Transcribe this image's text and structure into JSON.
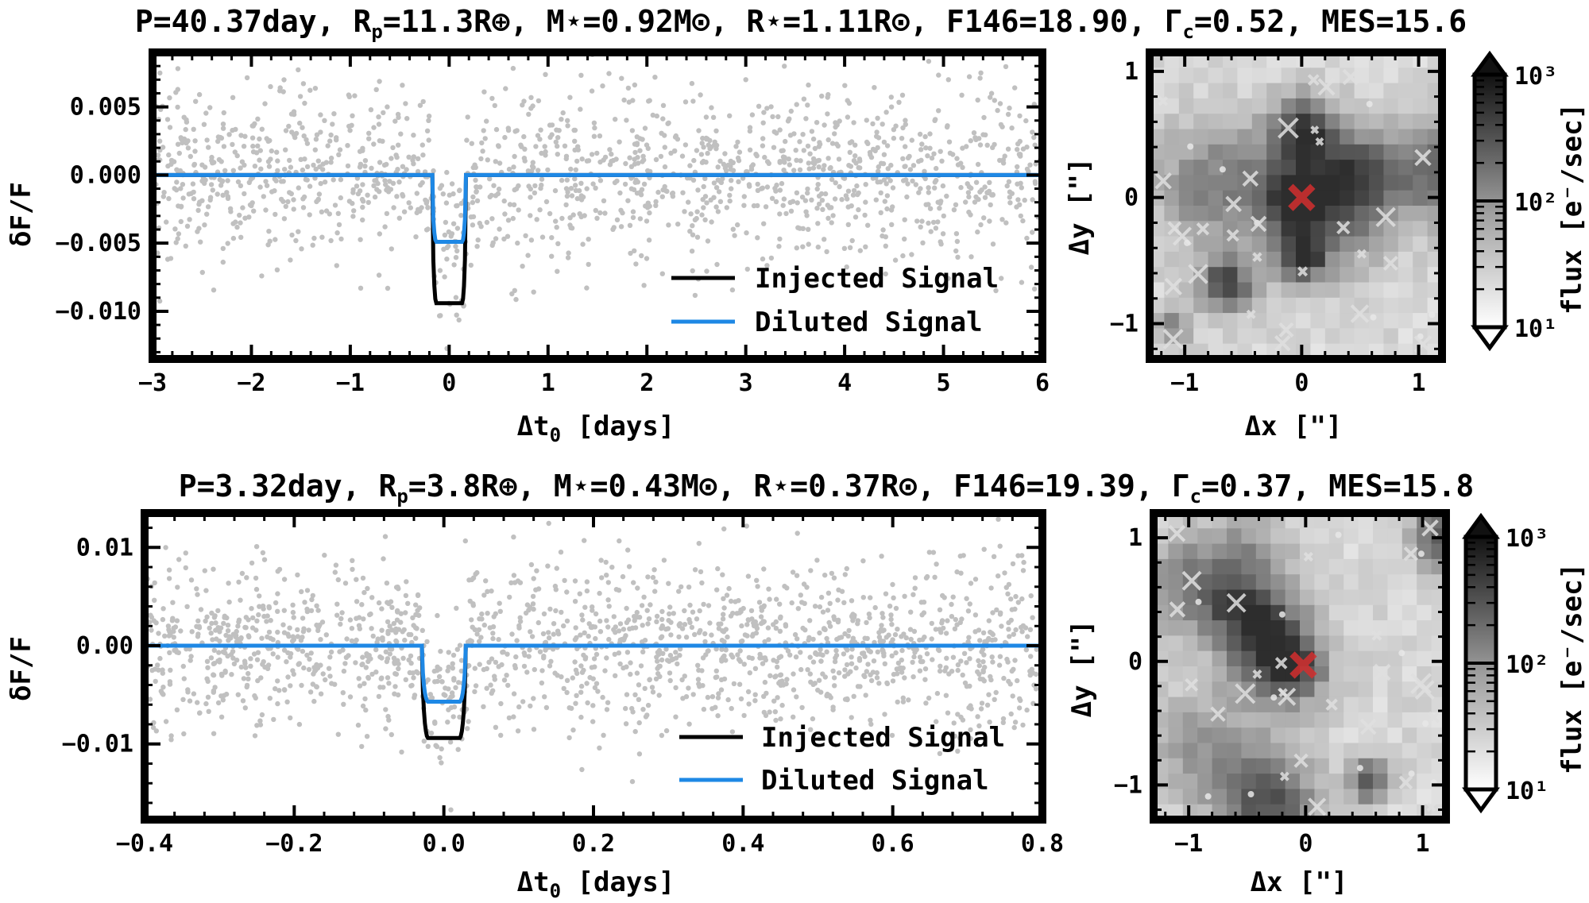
{
  "chart_data": [
    {
      "type": "scatter",
      "title": "P=40.37day, Rp=11.3R⊕, M⋆=0.92M⊙, R⋆=1.11R⊙, F146=18.90, Γc=0.52, MES=15.6",
      "title_parts": {
        "period": "P=40.37day, ",
        "rp_base": "R",
        "rp_sub": "p",
        "rp_val": "=11.3R⊕, ",
        "mstar": "M⋆=0.92M⊙, ",
        "rstar": "R⋆=1.11R⊙, ",
        "f146": "F146=18.90, ",
        "gamma_base": "Γ",
        "gamma_sub": "c",
        "gamma_val": "=0.52, ",
        "mes": "MES=15.6"
      },
      "xlabel_base": "Δt",
      "xlabel_sub": "0",
      "xlabel_rest": " [days]",
      "ylabel": "δF/F",
      "xlim": [
        -3,
        6
      ],
      "ylim": [
        -0.0135,
        0.009
      ],
      "xticks": [
        -3,
        -2,
        -1,
        0,
        1,
        2,
        3,
        4,
        5,
        6
      ],
      "xtick_labels": [
        "−3",
        "−2",
        "−1",
        "0",
        "1",
        "2",
        "3",
        "4",
        "5",
        "6"
      ],
      "yticks": [
        0.005,
        0.0,
        -0.005,
        -0.01
      ],
      "ytick_labels": [
        "0.005",
        "0.000",
        "−0.005",
        "−0.010"
      ],
      "series": [
        {
          "name": "Injected Signal",
          "color": "#000000",
          "depth": 0.0094,
          "t0": 0.0,
          "half_width": 0.17,
          "ingress": 0.04
        },
        {
          "name": "Diluted Signal",
          "color": "#1e88e5",
          "depth": 0.0049,
          "t0": 0.0,
          "half_width": 0.17,
          "ingress": 0.04
        }
      ],
      "scatter": {
        "color": "#c0c0c0",
        "n_points": 1500,
        "noise_sigma": 0.0033,
        "seed": 17
      },
      "legend_position": "lower-right"
    },
    {
      "type": "scatter",
      "title": "P=3.32day, Rp=3.8R⊕, M⋆=0.43M⊙, R⋆=0.37R⊙, F146=19.39, Γc=0.37, MES=15.8",
      "title_parts": {
        "period": "P=3.32day, ",
        "rp_base": "R",
        "rp_sub": "p",
        "rp_val": "=3.8R⊕, ",
        "mstar": "M⋆=0.43M⊙, ",
        "rstar": "R⋆=0.37R⊙, ",
        "f146": "F146=19.39, ",
        "gamma_base": "Γ",
        "gamma_sub": "c",
        "gamma_val": "=0.37, ",
        "mes": "MES=15.8"
      },
      "xlabel_base": "Δt",
      "xlabel_sub": "0",
      "xlabel_rest": " [days]",
      "ylabel": "δF/F",
      "xlim": [
        -0.4,
        0.8
      ],
      "ylim": [
        -0.0177,
        0.0135
      ],
      "xticks": [
        -0.4,
        -0.2,
        0.0,
        0.2,
        0.4,
        0.6,
        0.8
      ],
      "xtick_labels": [
        "−0.4",
        "−0.2",
        "0.0",
        "0.2",
        "0.4",
        "0.6",
        "0.8"
      ],
      "yticks": [
        0.01,
        0.0,
        -0.01
      ],
      "ytick_labels": [
        "0.01",
        "0.00",
        "−0.01"
      ],
      "series": [
        {
          "name": "Injected Signal",
          "color": "#000000",
          "depth": 0.0094,
          "t0": 0.0,
          "half_width": 0.029,
          "ingress": 0.008
        },
        {
          "name": "Diluted Signal",
          "color": "#1e88e5",
          "depth": 0.0057,
          "t0": 0.0,
          "half_width": 0.029,
          "ingress": 0.008
        }
      ],
      "scatter": {
        "color": "#c0c0c0",
        "n_points": 1700,
        "noise_sigma": 0.0042,
        "seed": 29
      },
      "legend_position": "lower-right"
    },
    {
      "type": "heatmap",
      "xlabel": "Δx [\"]",
      "ylabel": "Δy [\"]",
      "xlim": [
        -1.3,
        1.2
      ],
      "ylim": [
        -1.28,
        1.15
      ],
      "xticks": [
        -1,
        0,
        1
      ],
      "xtick_labels": [
        "−1",
        "0",
        "1"
      ],
      "yticks": [
        1,
        0,
        -1
      ],
      "ytick_labels": [
        "1",
        "0",
        "−1"
      ],
      "grid": 20,
      "seed": 5,
      "target": {
        "x": 0.0,
        "y": 0.0,
        "color": "#d32f2f"
      },
      "colorbar": {
        "label": "flux [e⁻/sec]",
        "scale": "log",
        "range": [
          10,
          1000
        ],
        "ticks": [
          "10¹",
          "10²",
          "10³"
        ]
      }
    },
    {
      "type": "heatmap",
      "xlabel": "Δx [\"]",
      "ylabel": "Δy [\"]",
      "xlim": [
        -1.3,
        1.2
      ],
      "ylim": [
        -1.28,
        1.2
      ],
      "xticks": [
        -1,
        0,
        1
      ],
      "xtick_labels": [
        "−1",
        "0",
        "1"
      ],
      "yticks": [
        1,
        0,
        -1
      ],
      "ytick_labels": [
        "1",
        "0",
        "−1"
      ],
      "grid": 20,
      "seed": 11,
      "target": {
        "x": -0.02,
        "y": -0.03,
        "color": "#d32f2f"
      },
      "colorbar": {
        "label": "flux [e⁻/sec]",
        "scale": "log",
        "range": [
          10,
          1000
        ],
        "ticks": [
          "10¹",
          "10²",
          "10³"
        ]
      }
    }
  ]
}
